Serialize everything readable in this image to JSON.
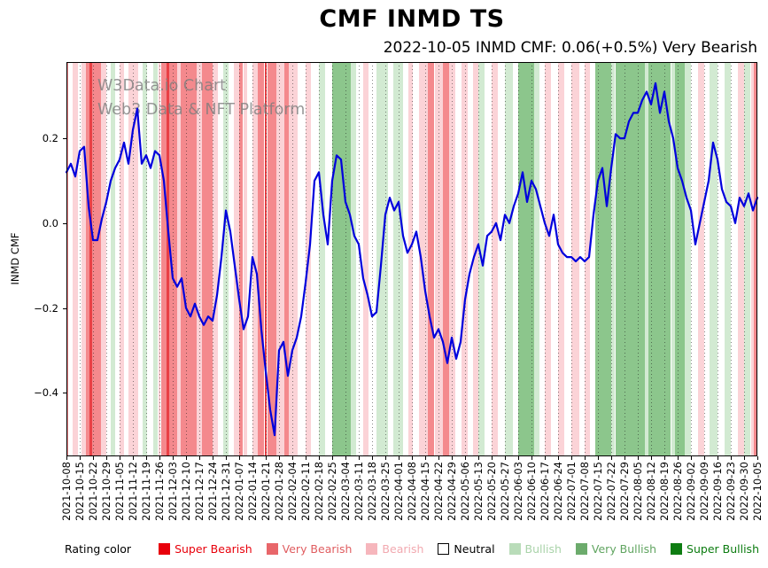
{
  "title": "CMF INMD TS",
  "subtitle": "2022-10-05 INMD CMF: 0.06(+0.5%) Very Bearish",
  "watermark": {
    "line1": "W3Data.io Chart",
    "line2": "Web3 Data & NFT Platform"
  },
  "legend": {
    "label": "Rating color",
    "items": [
      {
        "label": "Super Bearish",
        "swatch": "#e8000b",
        "text": "#e8000b",
        "border": "none"
      },
      {
        "label": "Very Bearish",
        "swatch": "#e8666a",
        "text": "#e05d60",
        "border": "none"
      },
      {
        "label": "Bearish",
        "swatch": "#f6b6bc",
        "text": "#f2a9b0",
        "border": "none"
      },
      {
        "label": "Neutral",
        "swatch": "#ffffff",
        "text": "#000000",
        "border": "1px solid #000"
      },
      {
        "label": "Bullish",
        "swatch": "#b9dcb9",
        "text": "#a9d3a9",
        "border": "none"
      },
      {
        "label": "Very Bullish",
        "swatch": "#6cab6c",
        "text": "#61a561",
        "border": "none"
      },
      {
        "label": "Super Bullish",
        "swatch": "#0e7d12",
        "text": "#0c7c10",
        "border": "none"
      }
    ]
  },
  "chart_data": {
    "type": "line",
    "title": "CMF INMD TS",
    "xlabel": "",
    "ylabel": "INMD CMF",
    "ylim": [
      -0.55,
      0.38
    ],
    "grid": "vertical-dotted",
    "legend_position": "bottom",
    "line_color": "#0000dd",
    "yticks": [
      {
        "label": "0.2",
        "value": 0.2
      },
      {
        "label": "0.0",
        "value": 0.0
      },
      {
        "label": "−0.2",
        "value": -0.2
      },
      {
        "label": "−0.4",
        "value": -0.4
      }
    ],
    "x_tick_labels": [
      "2021-10-08",
      "2021-10-15",
      "2021-10-22",
      "2021-10-29",
      "2021-11-05",
      "2021-11-12",
      "2021-11-19",
      "2021-11-26",
      "2021-12-03",
      "2021-12-10",
      "2021-12-17",
      "2021-12-24",
      "2021-12-31",
      "2022-01-07",
      "2022-01-14",
      "2022-01-21",
      "2022-01-28",
      "2022-02-04",
      "2022-02-11",
      "2022-02-18",
      "2022-02-25",
      "2022-03-04",
      "2022-03-11",
      "2022-03-18",
      "2022-03-25",
      "2022-04-01",
      "2022-04-08",
      "2022-04-15",
      "2022-04-22",
      "2022-04-29",
      "2022-05-06",
      "2022-05-13",
      "2022-05-20",
      "2022-05-27",
      "2022-06-03",
      "2022-06-10",
      "2022-06-17",
      "2022-06-24",
      "2022-07-01",
      "2022-07-08",
      "2022-07-15",
      "2022-07-22",
      "2022-07-29",
      "2022-08-05",
      "2022-08-12",
      "2022-08-19",
      "2022-08-26",
      "2022-09-02",
      "2022-09-09",
      "2022-09-16",
      "2022-09-23",
      "2022-09-30",
      "2022-10-05"
    ],
    "series": [
      {
        "name": "INMD CMF",
        "values": [
          0.12,
          0.14,
          0.11,
          0.17,
          0.18,
          0.04,
          -0.04,
          -0.04,
          0.01,
          0.05,
          0.1,
          0.13,
          0.15,
          0.19,
          0.14,
          0.22,
          0.27,
          0.14,
          0.16,
          0.13,
          0.17,
          0.16,
          0.1,
          -0.02,
          -0.13,
          -0.15,
          -0.13,
          -0.2,
          -0.22,
          -0.19,
          -0.22,
          -0.24,
          -0.22,
          -0.23,
          -0.17,
          -0.08,
          0.03,
          -0.02,
          -0.1,
          -0.18,
          -0.25,
          -0.22,
          -0.08,
          -0.12,
          -0.25,
          -0.35,
          -0.44,
          -0.5,
          -0.3,
          -0.28,
          -0.36,
          -0.3,
          -0.27,
          -0.22,
          -0.14,
          -0.05,
          0.1,
          0.12,
          0.02,
          -0.05,
          0.1,
          0.16,
          0.15,
          0.05,
          0.02,
          -0.03,
          -0.05,
          -0.13,
          -0.17,
          -0.22,
          -0.21,
          -0.1,
          0.02,
          0.06,
          0.03,
          0.05,
          -0.03,
          -0.07,
          -0.05,
          -0.02,
          -0.08,
          -0.16,
          -0.22,
          -0.27,
          -0.25,
          -0.28,
          -0.33,
          -0.27,
          -0.32,
          -0.28,
          -0.18,
          -0.12,
          -0.08,
          -0.05,
          -0.1,
          -0.03,
          -0.02,
          0.0,
          -0.04,
          0.02,
          0.0,
          0.04,
          0.07,
          0.12,
          0.05,
          0.1,
          0.08,
          0.04,
          0.0,
          -0.03,
          0.02,
          -0.05,
          -0.07,
          -0.08,
          -0.08,
          -0.09,
          -0.08,
          -0.09,
          -0.08,
          0.02,
          0.1,
          0.13,
          0.04,
          0.13,
          0.21,
          0.2,
          0.2,
          0.24,
          0.26,
          0.26,
          0.29,
          0.31,
          0.28,
          0.33,
          0.26,
          0.31,
          0.24,
          0.2,
          0.13,
          0.1,
          0.06,
          0.03,
          -0.05,
          0.0,
          0.05,
          0.1,
          0.19,
          0.15,
          0.08,
          0.05,
          0.04,
          0.0,
          0.06,
          0.04,
          0.07,
          0.03,
          0.06
        ]
      }
    ],
    "rating_colors": {
      "super_bearish": "#e94045",
      "very_bearish": "#f4898d",
      "bearish": "#fbd3d7",
      "neutral": "#ffffff",
      "bullish": "#d2ead2",
      "very_bullish": "#8cc68c",
      "super_bullish": "#3c9a3c"
    },
    "band_unit_max": 52,
    "bands": [
      {
        "start": 0.0,
        "end": 0.15,
        "rating": "very_bearish"
      },
      {
        "start": 0.15,
        "end": 0.5,
        "rating": "neutral"
      },
      {
        "start": 0.5,
        "end": 0.9,
        "rating": "bearish"
      },
      {
        "start": 0.9,
        "end": 1.15,
        "rating": "neutral"
      },
      {
        "start": 1.15,
        "end": 1.5,
        "rating": "bearish"
      },
      {
        "start": 1.5,
        "end": 1.75,
        "rating": "very_bearish"
      },
      {
        "start": 1.75,
        "end": 1.95,
        "rating": "super_bearish"
      },
      {
        "start": 1.95,
        "end": 2.6,
        "rating": "very_bearish"
      },
      {
        "start": 2.6,
        "end": 3.0,
        "rating": "bearish"
      },
      {
        "start": 3.0,
        "end": 3.3,
        "rating": "neutral"
      },
      {
        "start": 3.3,
        "end": 3.65,
        "rating": "bullish"
      },
      {
        "start": 3.65,
        "end": 4.0,
        "rating": "neutral"
      },
      {
        "start": 4.0,
        "end": 4.35,
        "rating": "bearish"
      },
      {
        "start": 4.35,
        "end": 4.65,
        "rating": "neutral"
      },
      {
        "start": 4.65,
        "end": 5.4,
        "rating": "bearish"
      },
      {
        "start": 5.4,
        "end": 5.7,
        "rating": "neutral"
      },
      {
        "start": 5.7,
        "end": 6.1,
        "rating": "bullish"
      },
      {
        "start": 6.1,
        "end": 6.5,
        "rating": "neutral"
      },
      {
        "start": 6.5,
        "end": 6.9,
        "rating": "bullish"
      },
      {
        "start": 6.9,
        "end": 7.1,
        "rating": "bearish"
      },
      {
        "start": 7.1,
        "end": 7.55,
        "rating": "very_bearish"
      },
      {
        "start": 7.55,
        "end": 7.75,
        "rating": "super_bearish"
      },
      {
        "start": 7.75,
        "end": 8.3,
        "rating": "very_bearish"
      },
      {
        "start": 8.3,
        "end": 8.6,
        "rating": "bearish"
      },
      {
        "start": 8.6,
        "end": 9.8,
        "rating": "very_bearish"
      },
      {
        "start": 9.8,
        "end": 10.2,
        "rating": "bearish"
      },
      {
        "start": 10.2,
        "end": 11.0,
        "rating": "very_bearish"
      },
      {
        "start": 11.0,
        "end": 11.4,
        "rating": "bearish"
      },
      {
        "start": 11.4,
        "end": 11.8,
        "rating": "neutral"
      },
      {
        "start": 11.8,
        "end": 12.2,
        "rating": "bullish"
      },
      {
        "start": 12.2,
        "end": 12.6,
        "rating": "neutral"
      },
      {
        "start": 12.6,
        "end": 13.0,
        "rating": "bearish"
      },
      {
        "start": 13.0,
        "end": 13.3,
        "rating": "very_bearish"
      },
      {
        "start": 13.3,
        "end": 13.6,
        "rating": "bearish"
      },
      {
        "start": 13.6,
        "end": 14.0,
        "rating": "neutral"
      },
      {
        "start": 14.0,
        "end": 14.4,
        "rating": "bearish"
      },
      {
        "start": 14.4,
        "end": 14.9,
        "rating": "very_bearish"
      },
      {
        "start": 14.9,
        "end": 15.1,
        "rating": "super_bearish"
      },
      {
        "start": 15.1,
        "end": 15.8,
        "rating": "very_bearish"
      },
      {
        "start": 15.8,
        "end": 16.4,
        "rating": "bearish"
      },
      {
        "start": 16.4,
        "end": 16.75,
        "rating": "very_bearish"
      },
      {
        "start": 16.75,
        "end": 17.4,
        "rating": "bearish"
      },
      {
        "start": 17.4,
        "end": 18.0,
        "rating": "neutral"
      },
      {
        "start": 18.0,
        "end": 18.4,
        "rating": "bearish"
      },
      {
        "start": 18.4,
        "end": 19.0,
        "rating": "neutral"
      },
      {
        "start": 19.0,
        "end": 19.5,
        "rating": "bullish"
      },
      {
        "start": 19.5,
        "end": 20.0,
        "rating": "neutral"
      },
      {
        "start": 20.0,
        "end": 21.4,
        "rating": "very_bullish"
      },
      {
        "start": 21.4,
        "end": 21.8,
        "rating": "bullish"
      },
      {
        "start": 21.8,
        "end": 22.3,
        "rating": "neutral"
      },
      {
        "start": 22.3,
        "end": 22.75,
        "rating": "bearish"
      },
      {
        "start": 22.75,
        "end": 23.3,
        "rating": "neutral"
      },
      {
        "start": 23.3,
        "end": 24.2,
        "rating": "bullish"
      },
      {
        "start": 24.2,
        "end": 24.6,
        "rating": "neutral"
      },
      {
        "start": 24.6,
        "end": 25.3,
        "rating": "bullish"
      },
      {
        "start": 25.3,
        "end": 25.7,
        "rating": "neutral"
      },
      {
        "start": 25.7,
        "end": 26.1,
        "rating": "bearish"
      },
      {
        "start": 26.1,
        "end": 26.5,
        "rating": "neutral"
      },
      {
        "start": 26.5,
        "end": 27.2,
        "rating": "bearish"
      },
      {
        "start": 27.2,
        "end": 27.7,
        "rating": "very_bearish"
      },
      {
        "start": 27.7,
        "end": 28.3,
        "rating": "bearish"
      },
      {
        "start": 28.3,
        "end": 28.8,
        "rating": "very_bearish"
      },
      {
        "start": 28.8,
        "end": 29.3,
        "rating": "bearish"
      },
      {
        "start": 29.3,
        "end": 29.7,
        "rating": "neutral"
      },
      {
        "start": 29.7,
        "end": 30.2,
        "rating": "bearish"
      },
      {
        "start": 30.2,
        "end": 30.6,
        "rating": "neutral"
      },
      {
        "start": 30.6,
        "end": 31.0,
        "rating": "bearish"
      },
      {
        "start": 31.0,
        "end": 31.5,
        "rating": "bullish"
      },
      {
        "start": 31.5,
        "end": 32.0,
        "rating": "neutral"
      },
      {
        "start": 32.0,
        "end": 32.5,
        "rating": "bearish"
      },
      {
        "start": 32.5,
        "end": 33.0,
        "rating": "neutral"
      },
      {
        "start": 33.0,
        "end": 33.6,
        "rating": "bullish"
      },
      {
        "start": 33.6,
        "end": 34.0,
        "rating": "neutral"
      },
      {
        "start": 34.0,
        "end": 35.2,
        "rating": "very_bullish"
      },
      {
        "start": 35.2,
        "end": 35.6,
        "rating": "bullish"
      },
      {
        "start": 35.6,
        "end": 36.0,
        "rating": "neutral"
      },
      {
        "start": 36.0,
        "end": 36.5,
        "rating": "bearish"
      },
      {
        "start": 36.5,
        "end": 37.0,
        "rating": "neutral"
      },
      {
        "start": 37.0,
        "end": 37.5,
        "rating": "bearish"
      },
      {
        "start": 37.5,
        "end": 38.0,
        "rating": "neutral"
      },
      {
        "start": 38.0,
        "end": 38.6,
        "rating": "bearish"
      },
      {
        "start": 38.6,
        "end": 39.0,
        "rating": "neutral"
      },
      {
        "start": 39.0,
        "end": 39.4,
        "rating": "bearish"
      },
      {
        "start": 39.4,
        "end": 39.8,
        "rating": "neutral"
      },
      {
        "start": 39.8,
        "end": 41.0,
        "rating": "very_bullish"
      },
      {
        "start": 41.0,
        "end": 41.3,
        "rating": "bullish"
      },
      {
        "start": 41.3,
        "end": 43.5,
        "rating": "very_bullish"
      },
      {
        "start": 43.5,
        "end": 43.8,
        "rating": "bullish"
      },
      {
        "start": 43.8,
        "end": 45.5,
        "rating": "very_bullish"
      },
      {
        "start": 45.5,
        "end": 45.8,
        "rating": "bullish"
      },
      {
        "start": 45.8,
        "end": 46.5,
        "rating": "very_bullish"
      },
      {
        "start": 46.5,
        "end": 47.0,
        "rating": "bullish"
      },
      {
        "start": 47.0,
        "end": 47.5,
        "rating": "neutral"
      },
      {
        "start": 47.5,
        "end": 48.0,
        "rating": "bearish"
      },
      {
        "start": 48.0,
        "end": 48.4,
        "rating": "neutral"
      },
      {
        "start": 48.4,
        "end": 49.0,
        "rating": "bullish"
      },
      {
        "start": 49.0,
        "end": 49.5,
        "rating": "neutral"
      },
      {
        "start": 49.5,
        "end": 50.0,
        "rating": "bullish"
      },
      {
        "start": 50.0,
        "end": 50.5,
        "rating": "neutral"
      },
      {
        "start": 50.5,
        "end": 51.0,
        "rating": "bearish"
      },
      {
        "start": 51.0,
        "end": 51.5,
        "rating": "bullish"
      },
      {
        "start": 51.5,
        "end": 51.75,
        "rating": "bearish"
      },
      {
        "start": 51.75,
        "end": 52.0,
        "rating": "very_bearish"
      }
    ]
  }
}
